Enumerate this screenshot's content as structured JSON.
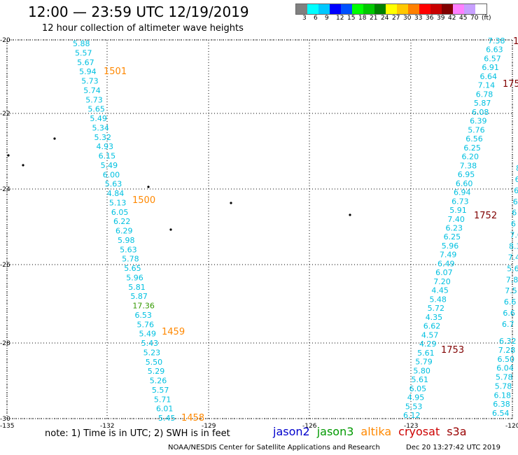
{
  "header": {
    "title": "12:00 — 23:59 UTC 12/19/2019",
    "subtitle": "12 hour collection of altimeter wave heights"
  },
  "legend": {
    "colors": [
      "#808080",
      "#00ffff",
      "#00c8ff",
      "#0000ff",
      "#0050ff",
      "#00ff00",
      "#00c800",
      "#008000",
      "#ffff00",
      "#ffc800",
      "#ff8000",
      "#ff0000",
      "#c80000",
      "#800000",
      "#ff80ff",
      "#c8a0ff",
      "#ffffff"
    ],
    "labels": [
      "3",
      "6",
      "9",
      "12",
      "15",
      "18",
      "21",
      "24",
      "27",
      "30",
      "33",
      "36",
      "39",
      "42",
      "45",
      "70",
      "(ft)"
    ]
  },
  "axes": {
    "lon_ticks": [
      "-135",
      "-132",
      "-129",
      "-126",
      "-123",
      "-120"
    ],
    "lat_ticks": [
      "-20",
      "-22",
      "-24",
      "-26",
      "-28",
      "-30"
    ]
  },
  "footer": {
    "note": "note: 1) Time is in UTC; 2) SWH is in feet",
    "satellites": [
      {
        "name": "jason2",
        "color": "#0000cc"
      },
      {
        "name": "jason3",
        "color": "#009900"
      },
      {
        "name": "altika",
        "color": "#ff8800"
      },
      {
        "name": "cryosat",
        "color": "#cc0000"
      },
      {
        "name": "s3a",
        "color": "#990000"
      }
    ],
    "credit": "NOAA/NESDIS Center for Satellite Applications and Research",
    "stamp": "Dec 20 13:27:42 UTC 2019"
  },
  "colors": {
    "cyan": "#00c0e0",
    "orange": "#ff8800",
    "darkred": "#800000",
    "green": "#339900"
  },
  "tracks": {
    "altika": {
      "color_key": "cyan",
      "values": [
        "5.88",
        "5.57",
        "5.67",
        "5.94",
        "5.73",
        "5.74",
        "5.73",
        "5.65",
        "5.49",
        "5.34",
        "5.32",
        "4.93",
        "6.15",
        "5.49",
        "6.00",
        "5.63",
        "4.84",
        "5.13",
        "6.05",
        "6.22",
        "6.29",
        "5.98",
        "5.63",
        "5.78",
        "5.65",
        "5.96",
        "5.81",
        "5.87",
        "17.36",
        "6.53",
        "5.76",
        "5.49",
        "5.43",
        "5.23",
        "5.50",
        "5.29",
        "5.26",
        "5.57",
        "5.71",
        "6.01",
        "5.45"
      ],
      "times": [
        "1501",
        "1500",
        "1459",
        "1458"
      ]
    },
    "cryosat_a": {
      "values": [
        "7.38",
        "6.63",
        "6.57",
        "6.91",
        "6.64",
        "7.14",
        "6.78",
        "5.87",
        "6.08",
        "6.39",
        "5.76",
        "6.56",
        "6.25",
        "6.20",
        "7.38",
        "6.95",
        "6.60",
        "6.94",
        "6.73",
        "5.91",
        "7.40",
        "6.23",
        "6.25",
        "5.96",
        "7.49",
        "6.49",
        "6.07",
        "7.20",
        "4.45",
        "5.48",
        "5.72",
        "4.35",
        "6.62",
        "4.57",
        "4.29",
        "5.61",
        "5.79",
        "5.80",
        "5.61",
        "6.05",
        "4.95",
        "5.53",
        "6.12"
      ],
      "times": [
        "1752",
        "1753"
      ]
    },
    "cryosat_b": {
      "values": [
        "6.32",
        "7.28",
        "6.50",
        "6.04",
        "5.78",
        "5.78",
        "6.18",
        "6.38",
        "6.54"
      ],
      "times": [
        "175",
        "1"
      ]
    },
    "edge_values": [
      "8",
      "6",
      "6",
      "6",
      "6",
      "6",
      "7.0",
      "8.3",
      "7.4",
      "5.6",
      "7.8",
      "7.5",
      "6.6",
      "6.6",
      "6.7"
    ]
  }
}
